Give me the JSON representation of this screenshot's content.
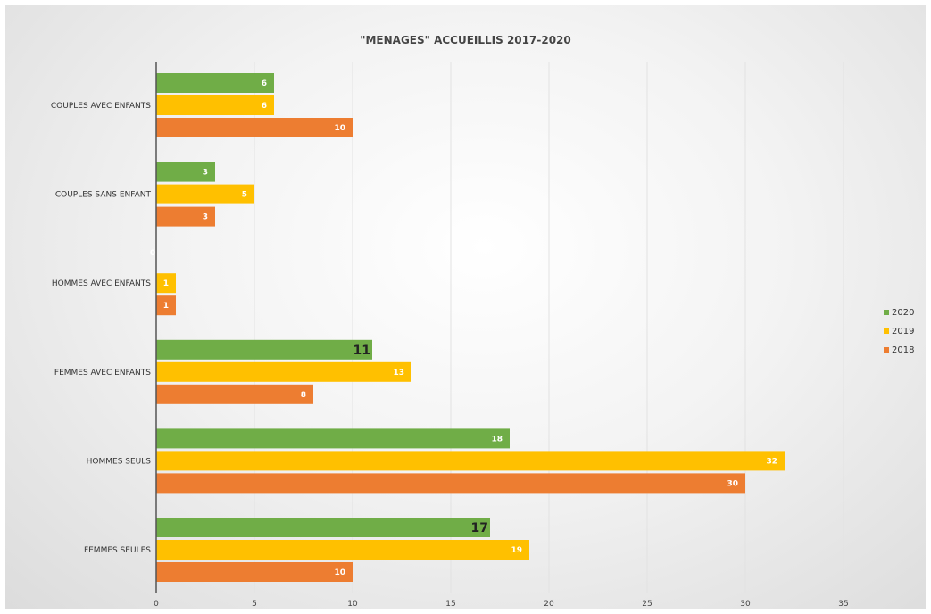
{
  "chart_data": {
    "type": "bar",
    "orientation": "horizontal",
    "title": "\"MENAGES\" ACCUEILLIS 2017-2020",
    "categories": [
      "COUPLES AVEC ENFANTS",
      "COUPLES SANS ENFANT",
      "HOMMES AVEC ENFANTS",
      "FEMMES AVEC ENFANTS",
      "HOMMES SEULS",
      "FEMMES SEULES"
    ],
    "series": [
      {
        "name": "2020",
        "color": "#70ad47",
        "values": [
          6,
          3,
          0,
          11,
          18,
          17
        ]
      },
      {
        "name": "2019",
        "color": "#ffc000",
        "values": [
          6,
          5,
          1,
          13,
          32,
          19
        ]
      },
      {
        "name": "2018",
        "color": "#ed7d31",
        "values": [
          10,
          3,
          1,
          8,
          30,
          10
        ]
      }
    ],
    "xlim": [
      0,
      35
    ],
    "x_ticks": [
      "0",
      "5",
      "10",
      "15",
      "20",
      "25",
      "30",
      "35"
    ],
    "grid": true,
    "legend": "right"
  }
}
